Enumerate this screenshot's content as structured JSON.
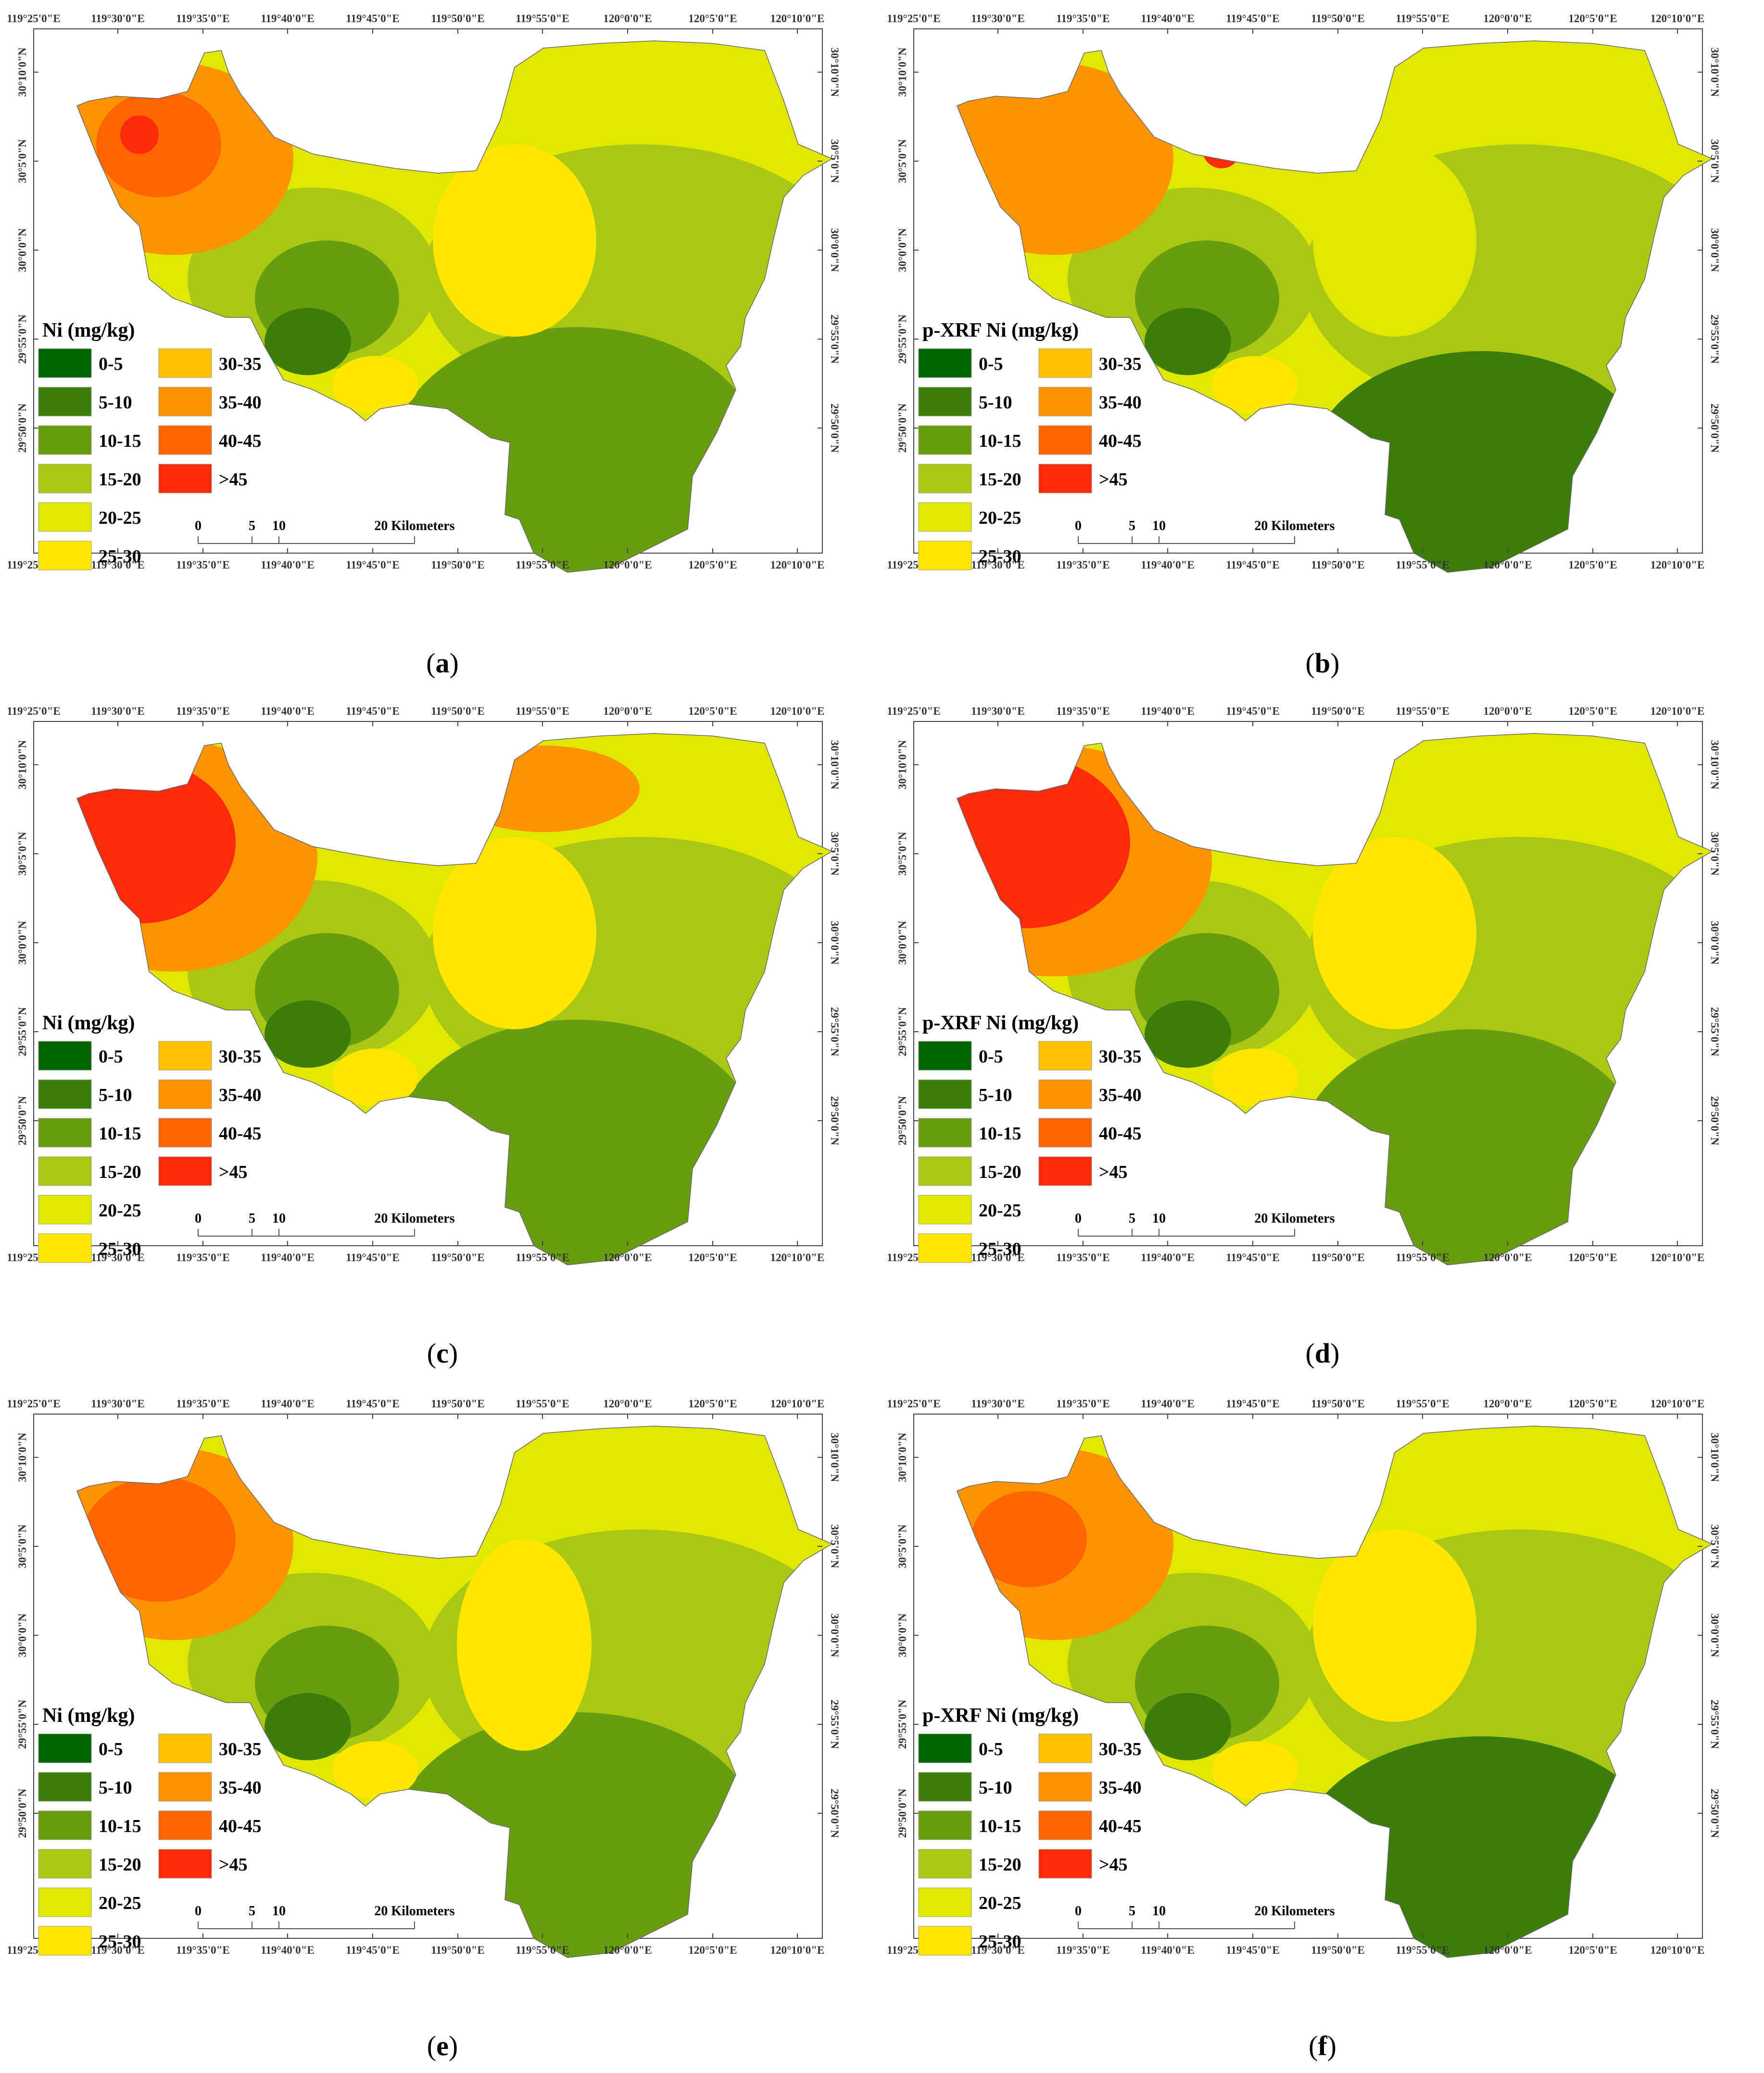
{
  "figure": {
    "panels": [
      {
        "id": "a",
        "caption_label": "a",
        "legend_title": "Ni (mg/kg)"
      },
      {
        "id": "b",
        "caption_label": "b",
        "legend_title": "p-XRF Ni (mg/kg)"
      },
      {
        "id": "c",
        "caption_label": "c",
        "legend_title": "Ni (mg/kg)"
      },
      {
        "id": "d",
        "caption_label": "d",
        "legend_title": "p-XRF Ni (mg/kg)"
      },
      {
        "id": "e",
        "caption_label": "e",
        "legend_title": "Ni (mg/kg)"
      },
      {
        "id": "f",
        "caption_label": "f",
        "legend_title": "p-XRF Ni (mg/kg)"
      }
    ],
    "longitude_ticks": [
      "119°25'0\"E",
      "119°30'0\"E",
      "119°35'0\"E",
      "119°40'0\"E",
      "119°45'0\"E",
      "119°50'0\"E",
      "119°55'0\"E",
      "120°0'0\"E",
      "120°5'0\"E",
      "120°10'0\"E"
    ],
    "latitude_ticks": [
      "30°10'0\"N",
      "30°5'0\"N",
      "30°0'0\"N",
      "29°55'0\"N",
      "29°50'0\"N"
    ],
    "legend_classes": [
      {
        "label": "0-5",
        "color": "#006400"
      },
      {
        "label": "5-10",
        "color": "#3a7d0a"
      },
      {
        "label": "10-15",
        "color": "#6a9c12"
      },
      {
        "label": "15-20",
        "color": "#a8c814"
      },
      {
        "label": "20-25",
        "color": "#dfe800"
      },
      {
        "label": "25-30",
        "color": "#ffe600"
      },
      {
        "label": "30-35",
        "color": "#ffc000"
      },
      {
        "label": "35-40",
        "color": "#ff9400"
      },
      {
        "label": "40-45",
        "color": "#ff6400"
      },
      {
        "label": ">45",
        "color": "#ff2a0a"
      }
    ],
    "scale_bar": {
      "labels": [
        "0",
        "5",
        "10"
      ],
      "unit": "20 Kilometers"
    }
  }
}
